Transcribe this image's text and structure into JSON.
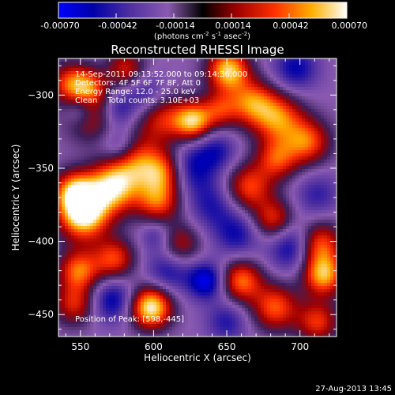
{
  "chart_data": {
    "type": "heatmap",
    "title": "Reconstructed RHESSI Image",
    "colorbar": {
      "ticks": [
        "-0.00070",
        "-0.00042",
        "-0.00014",
        "0.00014",
        "0.00042",
        "0.00070"
      ],
      "range": [
        -0.0007,
        0.0007
      ],
      "label_parts": [
        "(photons cm",
        "-2",
        " s",
        "-1",
        " asec",
        "-2",
        ")"
      ]
    },
    "xlabel": "Heliocentric X (arcsec)",
    "ylabel": "Heliocentric Y (arcsec)",
    "xlim": [
      535,
      725
    ],
    "ylim": [
      -465,
      -275
    ],
    "xticks": [
      550,
      600,
      650,
      700
    ],
    "yticks": [
      -300,
      -350,
      -400,
      -450
    ],
    "annotations": [
      "14-Sep-2011 09:13:52.000 to 09:14:36.000",
      "Detectors: 4F 5F 6F 7F 8F, Att 0",
      "Energy Range: 12.0 - 25.0 keV",
      "Clean    Total counts: 3.10E+03"
    ],
    "peak_label": "Position of Peak: [598,-445]",
    "peak": [
      598,
      -445
    ],
    "features": [
      {
        "x": 552,
        "y": -382,
        "v": 1.0,
        "r": 12
      },
      {
        "x": 571,
        "y": -364,
        "v": 0.8,
        "r": 12
      },
      {
        "x": 546,
        "y": -366,
        "v": 0.7,
        "r": 10
      },
      {
        "x": 598,
        "y": -445,
        "v": 1.0,
        "r": 10
      },
      {
        "x": 587,
        "y": -346,
        "v": 0.6,
        "r": 13
      },
      {
        "x": 603,
        "y": -372,
        "v": 0.55,
        "r": 11
      },
      {
        "x": 607,
        "y": -352,
        "v": 0.45,
        "r": 10
      },
      {
        "x": 556,
        "y": -313,
        "v": 0.45,
        "r": 12
      },
      {
        "x": 543,
        "y": -292,
        "v": 0.45,
        "r": 10
      },
      {
        "x": 606,
        "y": -316,
        "v": 0.4,
        "r": 12
      },
      {
        "x": 627,
        "y": -318,
        "v": 0.75,
        "r": 9
      },
      {
        "x": 651,
        "y": -283,
        "v": 0.85,
        "r": 10
      },
      {
        "x": 667,
        "y": -305,
        "v": 0.55,
        "r": 11
      },
      {
        "x": 685,
        "y": -316,
        "v": 0.6,
        "r": 12
      },
      {
        "x": 705,
        "y": -332,
        "v": 0.55,
        "r": 11
      },
      {
        "x": 684,
        "y": -344,
        "v": 0.45,
        "r": 10
      },
      {
        "x": 665,
        "y": -363,
        "v": 0.5,
        "r": 11
      },
      {
        "x": 682,
        "y": -385,
        "v": 0.45,
        "r": 10
      },
      {
        "x": 712,
        "y": -402,
        "v": 0.7,
        "r": 11
      },
      {
        "x": 716,
        "y": -423,
        "v": 0.75,
        "r": 10
      },
      {
        "x": 660,
        "y": -427,
        "v": 0.6,
        "r": 10
      },
      {
        "x": 683,
        "y": -445,
        "v": 0.55,
        "r": 11
      },
      {
        "x": 712,
        "y": -455,
        "v": 0.45,
        "r": 10
      },
      {
        "x": 549,
        "y": -420,
        "v": 0.6,
        "r": 10
      },
      {
        "x": 573,
        "y": -412,
        "v": 0.5,
        "r": 10
      },
      {
        "x": 546,
        "y": -443,
        "v": 0.4,
        "r": 10
      },
      {
        "x": 618,
        "y": -402,
        "v": 0.3,
        "r": 10
      },
      {
        "x": 645,
        "y": -310,
        "v": 0.35,
        "r": 9
      },
      {
        "x": 556,
        "y": -295,
        "v": 0.35,
        "r": 9
      },
      {
        "x": 581,
        "y": -282,
        "v": 0.35,
        "r": 9
      },
      {
        "x": 550,
        "y": -310,
        "v": -0.6,
        "r": 8
      },
      {
        "x": 575,
        "y": -310,
        "v": -0.45,
        "r": 9
      },
      {
        "x": 595,
        "y": -300,
        "v": -0.4,
        "r": 10
      },
      {
        "x": 577,
        "y": -336,
        "v": -0.5,
        "r": 9
      },
      {
        "x": 625,
        "y": -350,
        "v": -0.5,
        "r": 12
      },
      {
        "x": 643,
        "y": -338,
        "v": -0.4,
        "r": 10
      },
      {
        "x": 697,
        "y": -282,
        "v": -0.5,
        "r": 11
      },
      {
        "x": 712,
        "y": -368,
        "v": -0.35,
        "r": 11
      },
      {
        "x": 640,
        "y": -375,
        "v": -0.4,
        "r": 12
      },
      {
        "x": 657,
        "y": -395,
        "v": -0.45,
        "r": 11
      },
      {
        "x": 697,
        "y": -403,
        "v": -0.7,
        "r": 12
      },
      {
        "x": 610,
        "y": -420,
        "v": -0.45,
        "r": 11
      },
      {
        "x": 636,
        "y": -427,
        "v": -0.7,
        "r": 9
      },
      {
        "x": 572,
        "y": -440,
        "v": -0.55,
        "r": 11
      },
      {
        "x": 602,
        "y": -396,
        "v": -0.35,
        "r": 8
      },
      {
        "x": 650,
        "y": -455,
        "v": -0.4,
        "r": 10
      }
    ]
  },
  "footer": {
    "timestamp": "27-Aug-2013 13:45"
  }
}
